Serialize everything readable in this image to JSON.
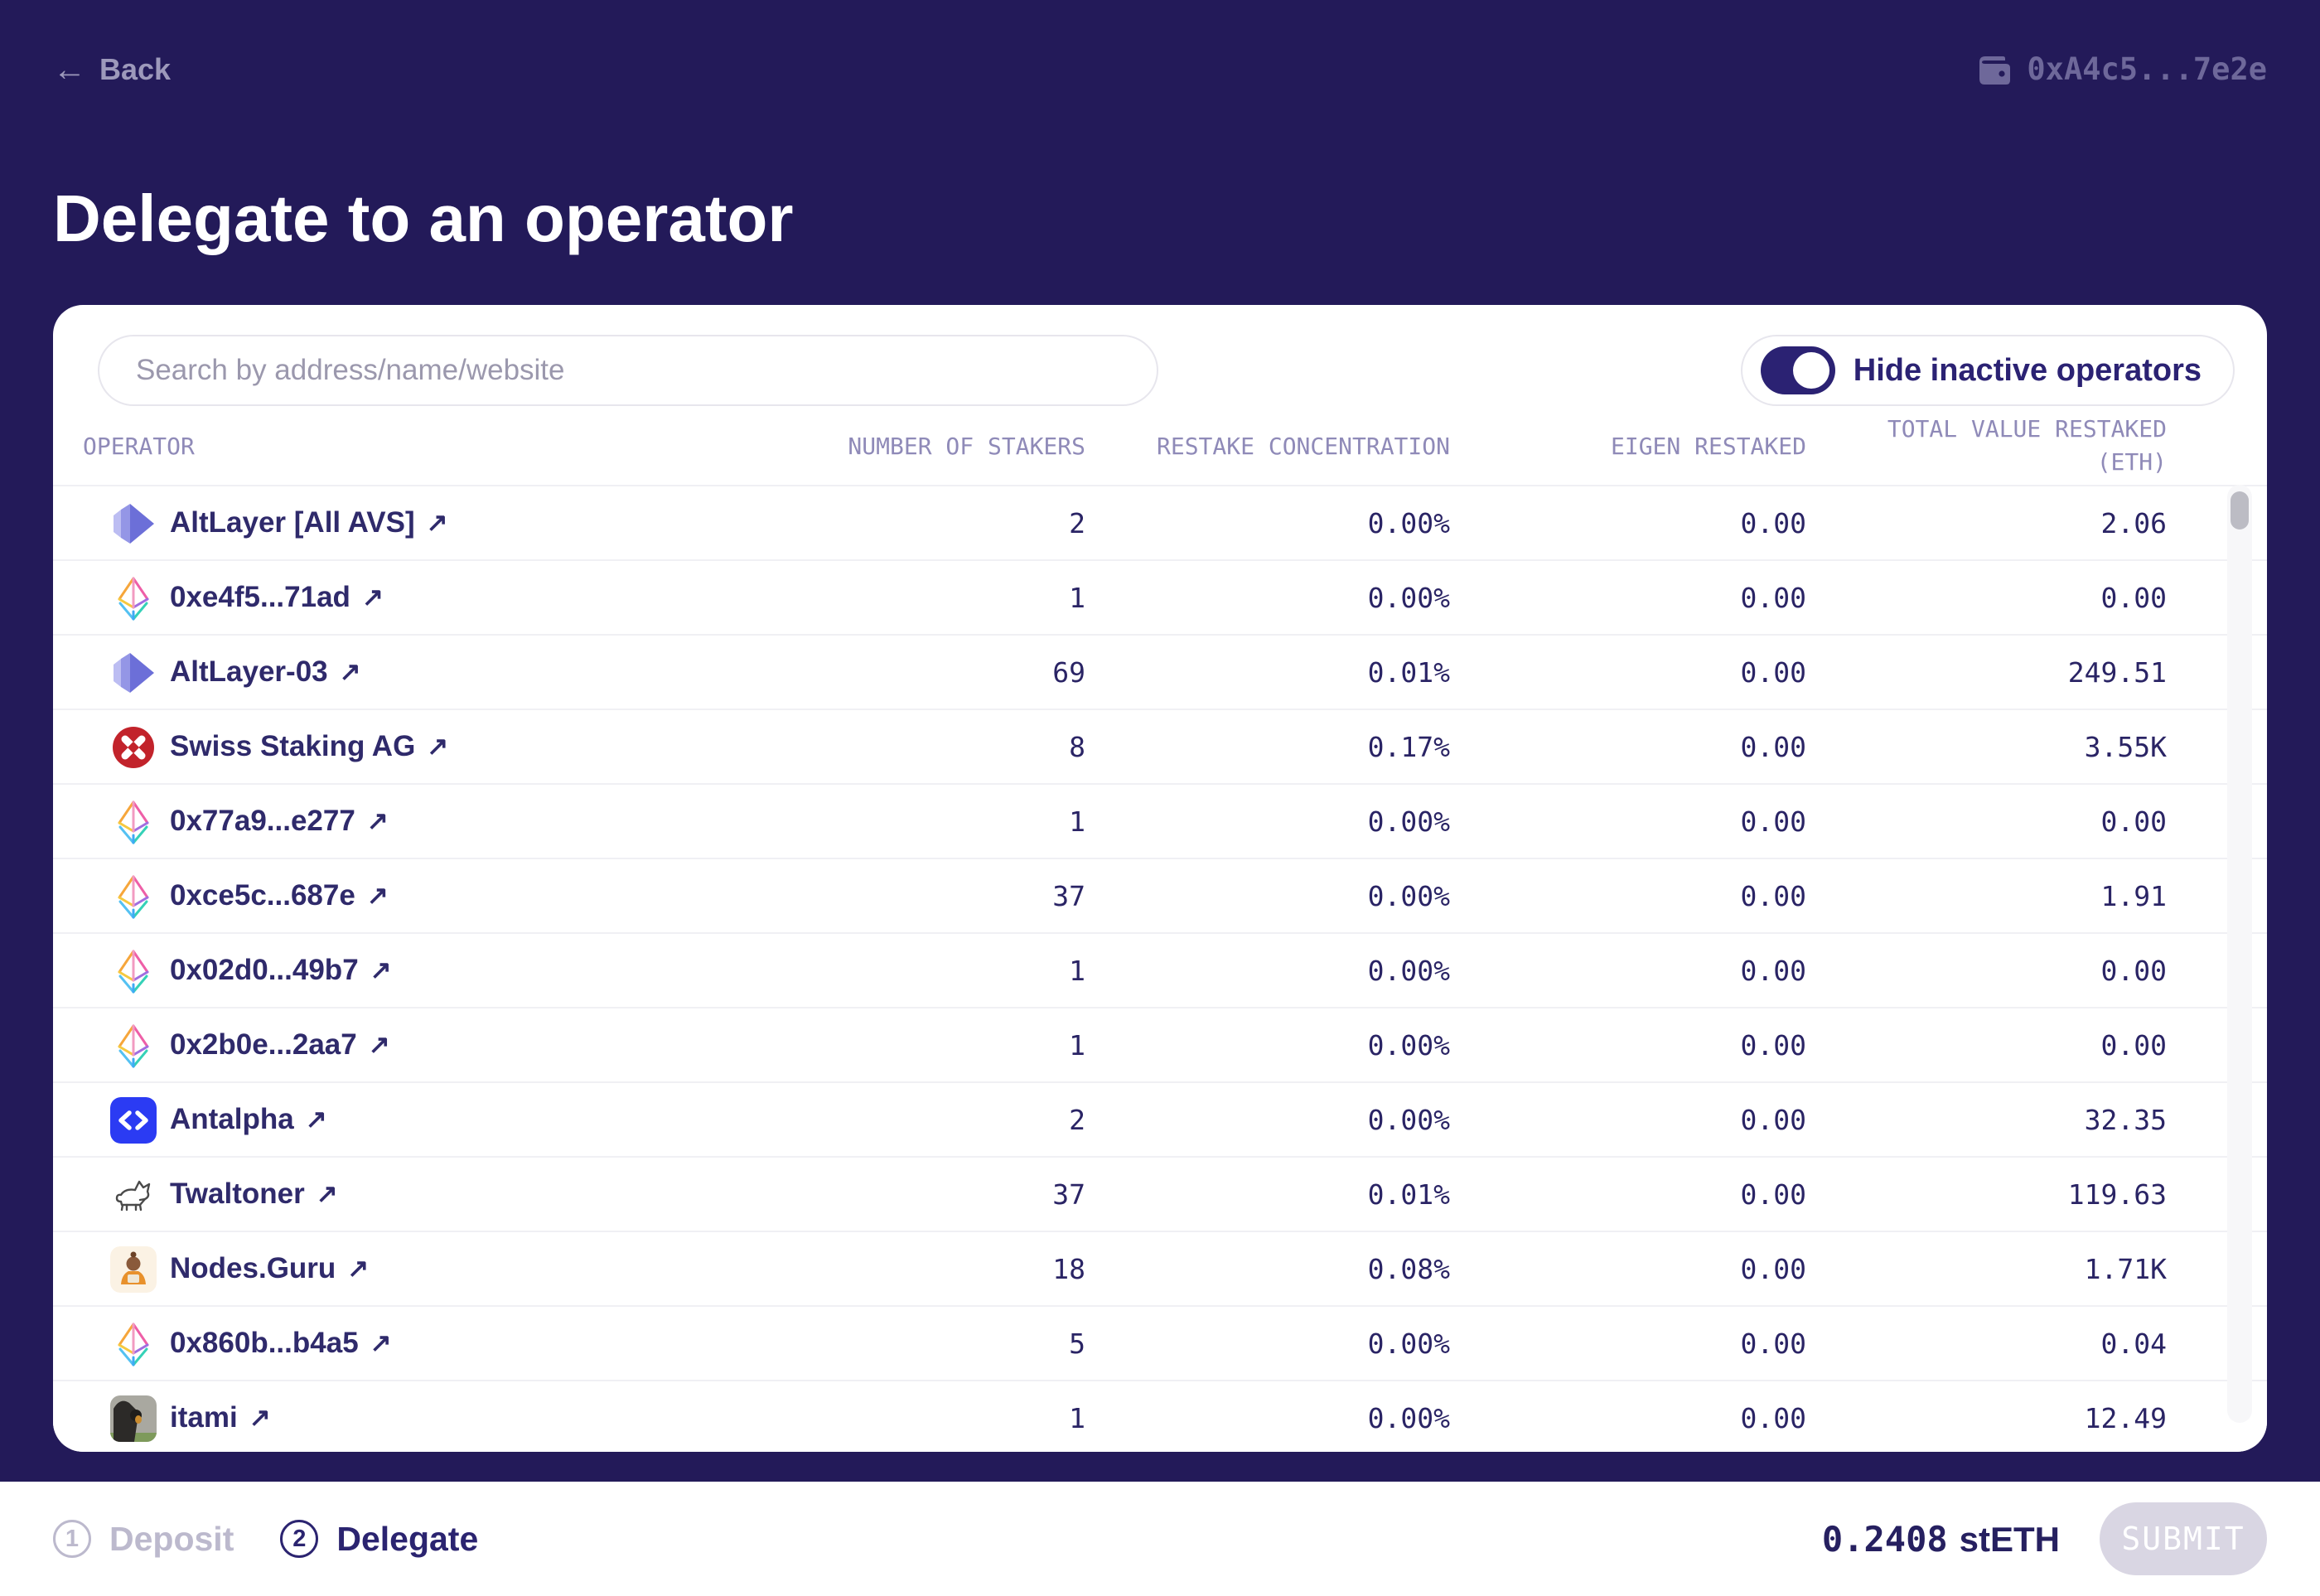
{
  "header": {
    "back_label": "Back",
    "wallet_address": "0xA4c5...7e2e"
  },
  "page_title": "Delegate to an operator",
  "icons": {
    "back_arrow": "←",
    "external_link": "↗"
  },
  "search": {
    "placeholder": "Search by address/name/website"
  },
  "toggle": {
    "label": "Hide inactive operators",
    "state": "on"
  },
  "table": {
    "columns": [
      "OPERATOR",
      "NUMBER OF STAKERS",
      "RESTAKE CONCENTRATION",
      "EIGEN RESTAKED",
      "TOTAL VALUE RESTAKED (ETH)"
    ],
    "rows": [
      {
        "name": "AltLayer [All AVS]",
        "icon": "altlayer-logo",
        "stakers": "2",
        "concentration": "0.00%",
        "eigen": "0.00",
        "total": "2.06"
      },
      {
        "name": "0xe4f5...71ad",
        "icon": "eth-diamond-logo",
        "stakers": "1",
        "concentration": "0.00%",
        "eigen": "0.00",
        "total": "0.00"
      },
      {
        "name": "AltLayer-03",
        "icon": "altlayer-logo",
        "stakers": "69",
        "concentration": "0.01%",
        "eigen": "0.00",
        "total": "249.51"
      },
      {
        "name": "Swiss Staking AG",
        "icon": "swiss-staking-logo",
        "stakers": "8",
        "concentration": "0.17%",
        "eigen": "0.00",
        "total": "3.55K"
      },
      {
        "name": "0x77a9...e277",
        "icon": "eth-diamond-logo",
        "stakers": "1",
        "concentration": "0.00%",
        "eigen": "0.00",
        "total": "0.00"
      },
      {
        "name": "0xce5c...687e",
        "icon": "eth-diamond-logo",
        "stakers": "37",
        "concentration": "0.00%",
        "eigen": "0.00",
        "total": "1.91"
      },
      {
        "name": "0x02d0...49b7",
        "icon": "eth-diamond-logo",
        "stakers": "1",
        "concentration": "0.00%",
        "eigen": "0.00",
        "total": "0.00"
      },
      {
        "name": "0x2b0e...2aa7",
        "icon": "eth-diamond-logo",
        "stakers": "1",
        "concentration": "0.00%",
        "eigen": "0.00",
        "total": "0.00"
      },
      {
        "name": "Antalpha",
        "icon": "antalpha-logo",
        "stakers": "2",
        "concentration": "0.00%",
        "eigen": "0.00",
        "total": "32.35"
      },
      {
        "name": "Twaltoner",
        "icon": "twaltoner-logo",
        "stakers": "37",
        "concentration": "0.01%",
        "eigen": "0.00",
        "total": "119.63"
      },
      {
        "name": "Nodes.Guru",
        "icon": "nodes-guru-logo",
        "stakers": "18",
        "concentration": "0.08%",
        "eigen": "0.00",
        "total": "1.71K"
      },
      {
        "name": "0x860b...b4a5",
        "icon": "eth-diamond-logo",
        "stakers": "5",
        "concentration": "0.00%",
        "eigen": "0.00",
        "total": "0.04"
      },
      {
        "name": "itami",
        "icon": "itami-avatar",
        "stakers": "1",
        "concentration": "0.00%",
        "eigen": "0.00",
        "total": "12.49"
      }
    ]
  },
  "footer": {
    "steps": [
      {
        "number": "1",
        "label": "Deposit",
        "active": false
      },
      {
        "number": "2",
        "label": "Delegate",
        "active": true
      }
    ],
    "balance_amount": "0.2408",
    "balance_token": "stETH",
    "submit_label": "SUBMIT"
  },
  "colors": {
    "background": "#231a59",
    "accent_navy": "#2b2273",
    "muted_header": "#8f8ab8",
    "row_text": "#2f2a6b",
    "submit_disabled_bg": "#d9d6e3",
    "swiss_red": "#c2232b",
    "antalpha_blue": "#2b3bf3"
  }
}
